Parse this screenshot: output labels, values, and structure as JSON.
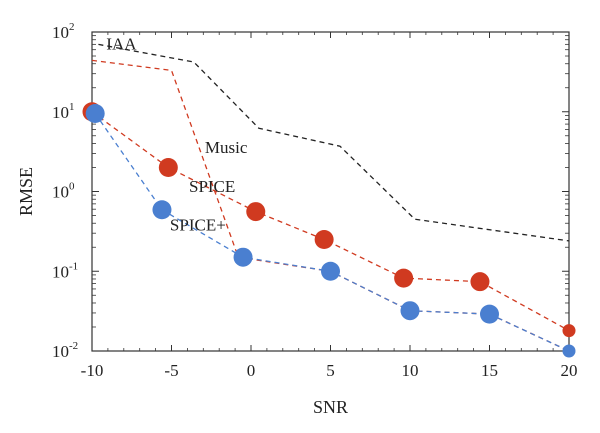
{
  "chart_data": {
    "type": "line",
    "title": "",
    "xlabel": "SNR",
    "ylabel": "RMSE",
    "xlim": [
      -10,
      20
    ],
    "ylim": [
      0.01,
      100
    ],
    "yscale": "log",
    "grid": false,
    "x_ticks": [
      "-10",
      "-5",
      "0",
      "5",
      "10",
      "15",
      "20"
    ],
    "y_ticks": [
      {
        "base": "10",
        "exp": "-2"
      },
      {
        "base": "10",
        "exp": "-1"
      },
      {
        "base": "10",
        "exp": "0"
      },
      {
        "base": "10",
        "exp": "1"
      },
      {
        "base": "10",
        "exp": "2"
      }
    ],
    "series": [
      {
        "name": "IAA",
        "color": "#222222",
        "dash": true,
        "marker": false,
        "points": [
          [
            -9.6,
            70
          ],
          [
            -3.6,
            42
          ],
          [
            0.5,
            6.2
          ],
          [
            5.6,
            3.7
          ],
          [
            10.3,
            0.45
          ],
          [
            20,
            0.24
          ]
        ]
      },
      {
        "name": "Music",
        "color": "#d03a20",
        "dash": true,
        "marker": true,
        "points": [
          [
            -10,
            10
          ],
          [
            -5.2,
            2.0
          ],
          [
            0.3,
            0.56
          ],
          [
            4.6,
            0.25
          ],
          [
            9.6,
            0.082
          ],
          [
            14.4,
            0.074
          ],
          [
            20,
            0.018
          ]
        ]
      },
      {
        "name": "SPICE",
        "color": "#d03a20",
        "dash": true,
        "marker": false,
        "points": [
          [
            -10,
            44
          ],
          [
            -5,
            33
          ],
          [
            -0.8,
            0.15
          ],
          [
            5,
            0.1
          ],
          [
            10,
            0.032
          ],
          [
            15,
            0.029
          ],
          [
            20,
            0.01
          ]
        ]
      },
      {
        "name": "SPICE+",
        "color": "#4a7fd0",
        "dash": true,
        "marker": true,
        "points": [
          [
            -9.8,
            9.5
          ],
          [
            -5.6,
            0.59
          ],
          [
            -0.5,
            0.15
          ],
          [
            5,
            0.1
          ],
          [
            10,
            0.032
          ],
          [
            15,
            0.029
          ],
          [
            20,
            0.01
          ]
        ]
      }
    ],
    "annotations": [
      {
        "text": "IAA",
        "x": -9.1,
        "y": 60
      },
      {
        "text": "Music",
        "x": -2.9,
        "y": 3.05
      },
      {
        "text": "SPICE",
        "x": -3.9,
        "y": 0.98
      },
      {
        "text": "SPICE+",
        "x": -5.1,
        "y": 0.325
      }
    ]
  }
}
